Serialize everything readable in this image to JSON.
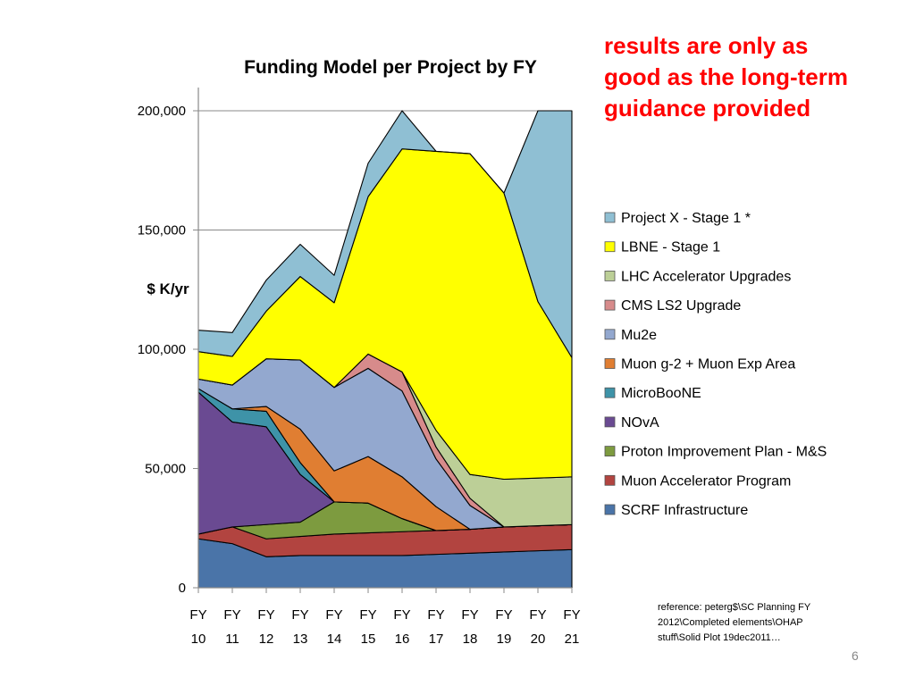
{
  "callout": {
    "lines": [
      "results are only as",
      "good as the long-term",
      "guidance provided"
    ],
    "color": "#ff0000"
  },
  "reference": {
    "lines": [
      "reference:  peterg$\\SC Planning FY",
      "2012\\Completed elements\\OHAP",
      "stuff\\Solid Plot 19dec2011…"
    ]
  },
  "page_number": "6",
  "chart_data": {
    "type": "area",
    "stacked": true,
    "title": "Funding Model per Project by FY",
    "xlabel": "",
    "ylabel": "$ K/yr",
    "ylim": [
      0,
      200000
    ],
    "yticks": [
      0,
      50000,
      100000,
      150000,
      200000
    ],
    "ytick_labels": [
      "0",
      "50,000",
      "100,000",
      "150,000",
      "200,000"
    ],
    "grid": true,
    "legend": "right",
    "categories": [
      [
        "FY",
        "10"
      ],
      [
        "FY",
        "11"
      ],
      [
        "FY",
        "12"
      ],
      [
        "FY",
        "13"
      ],
      [
        "FY",
        "14"
      ],
      [
        "FY",
        "15"
      ],
      [
        "FY",
        "16"
      ],
      [
        "FY",
        "17"
      ],
      [
        "FY",
        "18"
      ],
      [
        "FY",
        "19"
      ],
      [
        "FY",
        "20"
      ],
      [
        "FY",
        "21"
      ]
    ],
    "series": [
      {
        "name": "SCRF Infrastructure",
        "color": "#4a74a8",
        "values": [
          20500,
          18500,
          13000,
          13500,
          13500,
          13500,
          13500,
          14000,
          14500,
          15000,
          15500,
          16000
        ]
      },
      {
        "name": "Muon Accelerator Program",
        "color": "#b24440",
        "values": [
          2000,
          7000,
          7500,
          8000,
          9000,
          9500,
          10000,
          10000,
          10000,
          10500,
          10500,
          10500
        ]
      },
      {
        "name": "Proton Improvement Plan - M&S",
        "color": "#7d9b3f",
        "values": [
          0,
          0,
          6000,
          6000,
          13500,
          12500,
          5500,
          0,
          0,
          0,
          0,
          0
        ]
      },
      {
        "name": "NOvA",
        "color": "#6a4a92",
        "values": [
          59500,
          44000,
          41000,
          20000,
          0,
          0,
          0,
          0,
          0,
          0,
          0,
          0
        ]
      },
      {
        "name": "MicroBooNE",
        "color": "#3e93a8",
        "values": [
          1500,
          5500,
          6500,
          5000,
          0,
          0,
          0,
          0,
          0,
          0,
          0,
          0
        ]
      },
      {
        "name": "Muon g-2 + Muon Exp Area",
        "color": "#e07e32",
        "values": [
          0,
          0,
          2000,
          14000,
          13000,
          19500,
          17500,
          10000,
          0,
          0,
          0,
          0
        ]
      },
      {
        "name": "Mu2e",
        "color": "#93a8cf",
        "values": [
          4000,
          10000,
          20000,
          29000,
          35000,
          37000,
          36000,
          20000,
          10000,
          0,
          0,
          0
        ]
      },
      {
        "name": "CMS LS2 Upgrade",
        "color": "#d78b8b",
        "values": [
          0,
          0,
          0,
          0,
          0,
          6000,
          8000,
          5000,
          3000,
          0,
          0,
          0
        ]
      },
      {
        "name": "LHC Accelerator Upgrades",
        "color": "#bccf97",
        "values": [
          0,
          0,
          0,
          0,
          0,
          0,
          0,
          7000,
          10000,
          20000,
          20000,
          20000
        ]
      },
      {
        "name": "LBNE - Stage 1",
        "color": "#ffff00",
        "values": [
          11500,
          12000,
          20000,
          35000,
          35500,
          66000,
          93500,
          117000,
          134500,
          120000,
          74000,
          50000
        ]
      },
      {
        "name": "Project X - Stage 1 *",
        "color": "#8fbfd3",
        "values": [
          9000,
          10000,
          13000,
          13500,
          11500,
          14000,
          16000,
          0,
          0,
          0,
          80000,
          103500
        ]
      }
    ]
  }
}
